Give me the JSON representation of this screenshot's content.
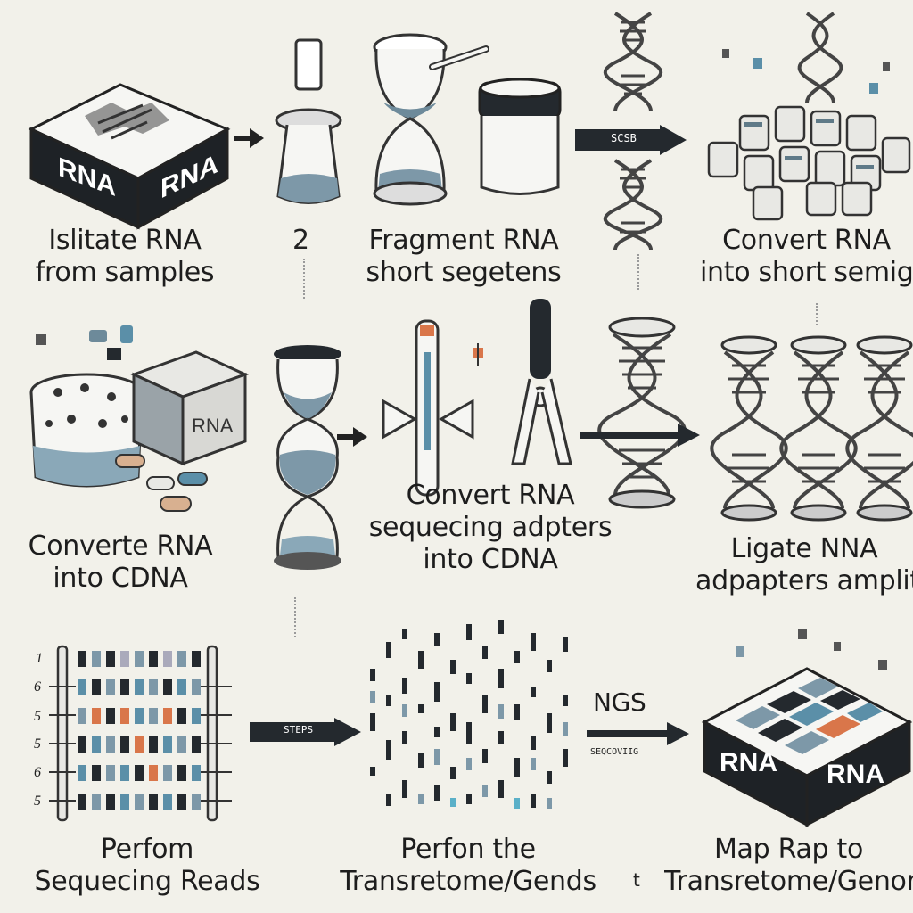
{
  "steps": [
    {
      "line1": "Islitate RNA",
      "line2": "from samples"
    },
    {
      "line1": "Fragment RNA",
      "line2": "short segetens"
    },
    {
      "line1": "Convert RNA",
      "line2": "into short semigs"
    },
    {
      "line1": "Converte RNA",
      "line2": "into CDNA"
    },
    {
      "line1": "Convert RNA",
      "line2": "sequecing adpters",
      "line3": "into CDNA"
    },
    {
      "line1": "Ligate NNA",
      "line2": "adpapters amplit"
    },
    {
      "line1": "Perfom",
      "line2": "Sequecing Reads"
    },
    {
      "line1": "Perfon the",
      "line2": "Transretome/Gends"
    },
    {
      "line1": "Map Rap to",
      "line2": "Transretome/Genor"
    }
  ],
  "box_labels": {
    "top_left": "RNA",
    "top_right": "RNA",
    "mid": "RNA",
    "bottom_left": "RNA",
    "bottom_right": "RNA"
  },
  "step_number": "2",
  "arrow_tags": {
    "row1": "SCSB",
    "row3_left": "STEPS",
    "row3_right": "SEQCOVIIG"
  },
  "ngs_label": "NGS",
  "small_mark": "t",
  "ladder_numbers": [
    "1",
    "6",
    "5",
    "5",
    "6",
    "5"
  ],
  "icons": [
    "tube-icon",
    "hourglass-icon",
    "beaker-icon",
    "dna-helix-icon",
    "cube-cluster-icon",
    "scissors-icon",
    "gel-ladder-icon",
    "barcode-icon",
    "chip-icon"
  ],
  "colors": {
    "background": "#f2f1ea",
    "dark": "#1e2226",
    "accent_blue": "#5b8fa8",
    "accent_orange": "#d9764a"
  }
}
